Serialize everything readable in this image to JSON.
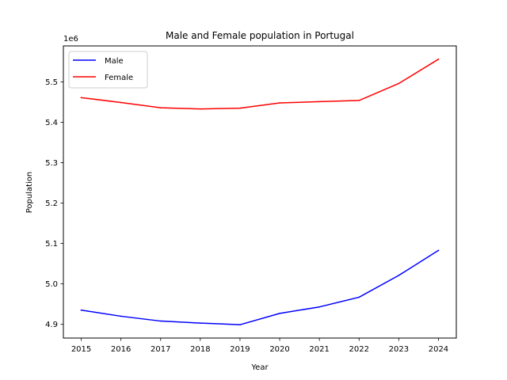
{
  "chart_data": {
    "type": "line",
    "title": "Male and Female population in Portugal",
    "xlabel": "Year",
    "ylabel": "Population",
    "y_offset_label": "1e6",
    "x": [
      2015,
      2016,
      2017,
      2018,
      2019,
      2020,
      2021,
      2022,
      2023,
      2024
    ],
    "series": [
      {
        "name": "Male",
        "color": "#0000ff",
        "values": [
          4935000,
          4920000,
          4908000,
          4903000,
          4899000,
          4927000,
          4943000,
          4967000,
          5021000,
          5083000
        ]
      },
      {
        "name": "Female",
        "color": "#ff0000",
        "values": [
          5461000,
          5449000,
          5436000,
          5433000,
          5435000,
          5448000,
          5451000,
          5454000,
          5496000,
          5556000
        ]
      }
    ],
    "xlim": [
      2014.55,
      2024.45
    ],
    "ylim": [
      4866000,
      5589000
    ],
    "y_ticks": [
      4900000,
      5000000,
      5100000,
      5200000,
      5300000,
      5400000,
      5500000
    ],
    "y_tick_labels": [
      "4.9",
      "5.0",
      "5.1",
      "5.2",
      "5.3",
      "5.4",
      "5.5"
    ],
    "x_tick_labels": [
      "2015",
      "2016",
      "2017",
      "2018",
      "2019",
      "2020",
      "2021",
      "2022",
      "2023",
      "2024"
    ],
    "legend_position": "upper-left",
    "grid": false
  }
}
